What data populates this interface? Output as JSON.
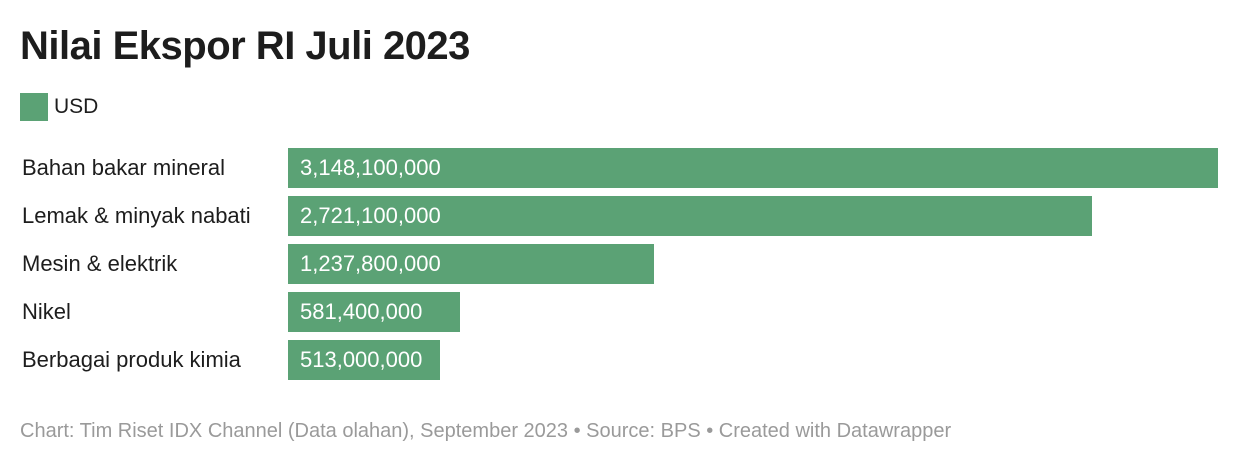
{
  "chart_data": {
    "type": "bar",
    "orientation": "horizontal",
    "title": "Nilai Ekspor RI Juli 2023",
    "legend": "USD",
    "categories": [
      "Bahan bakar mineral",
      "Lemak & minyak nabati",
      "Mesin & elektrik",
      "Nikel",
      "Berbagai produk kimia"
    ],
    "series": [
      {
        "name": "USD",
        "color": "#5ba275",
        "values": [
          3148100000,
          2721100000,
          1237800000,
          581400000,
          513000000
        ],
        "labels": [
          "3,148,100,000",
          "2,721,100,000",
          "1,237,800,000",
          "581,400,000",
          "513,000,000"
        ]
      }
    ],
    "xlim": [
      0,
      3148100000
    ],
    "grid": false,
    "legend_position": "top-left"
  },
  "footer": {
    "text": "Chart: Tim Riset IDX Channel (Data olahan), September 2023 • Source: BPS • Created with Datawrapper"
  }
}
